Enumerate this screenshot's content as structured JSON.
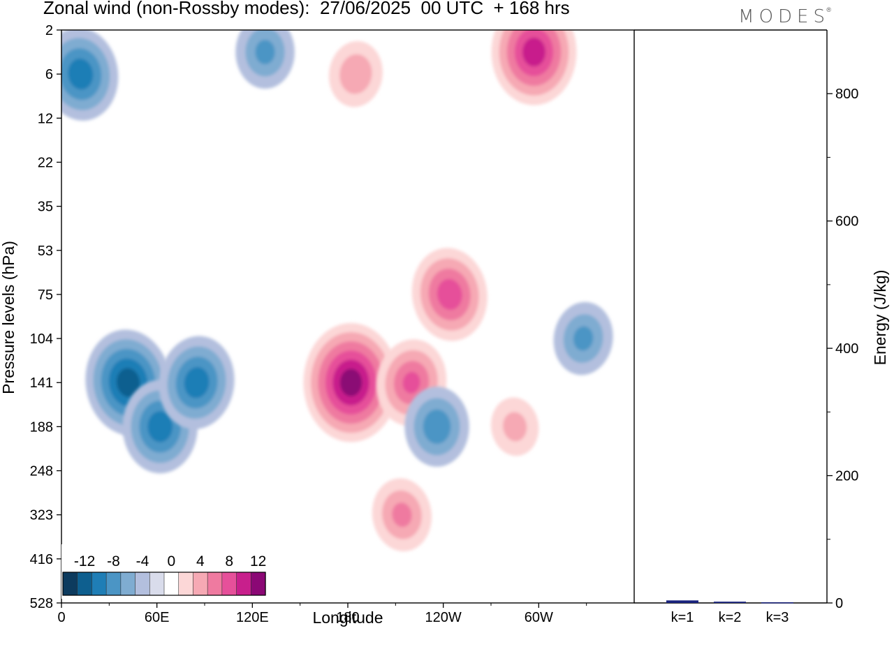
{
  "header": {
    "title": "Zonal wind (non-Rossby modes):  27/06/2025  00 UTC  + 168 hrs",
    "brand": "MODES",
    "brand_mark": "®"
  },
  "chart_data": [
    {
      "type": "heatmap",
      "variable": "Zonal wind",
      "xlabel": "Longitude",
      "ylabel": "Pressure levels (hPa)",
      "x_ticks": [
        "0",
        "60E",
        "120E",
        "180",
        "120W",
        "60W"
      ],
      "x_tick_degrees": [
        0,
        60,
        120,
        180,
        240,
        300
      ],
      "xlim": [
        0,
        360
      ],
      "y_ticks": [
        "2",
        "6",
        "12",
        "22",
        "35",
        "53",
        "75",
        "104",
        "141",
        "188",
        "248",
        "323",
        "416",
        "528"
      ],
      "y_scale": "model levels (irregular)",
      "colorbar": {
        "labels": [
          "-12",
          "-8",
          "-4",
          "0",
          "4",
          "8",
          "12"
        ],
        "levels": [
          -14,
          -12,
          -10,
          -8,
          -6,
          -4,
          -2,
          0,
          2,
          4,
          6,
          8,
          10,
          12,
          14
        ],
        "colors": [
          "#0d3b5e",
          "#0e5f8f",
          "#1f7eb6",
          "#4b95c5",
          "#7facd1",
          "#b3bfde",
          "#d9dceb",
          "#ffffff",
          "#fcd7d7",
          "#f6a9b4",
          "#ef7aa0",
          "#e6509a",
          "#c81f8c",
          "#8b0875"
        ],
        "placement": "bottom-left"
      },
      "features": [
        {
          "lon": 42,
          "level": "141",
          "value": -11
        },
        {
          "lon": 62,
          "level": "188",
          "value": -9
        },
        {
          "lon": 85,
          "level": "141",
          "value": -9
        },
        {
          "lon": 12,
          "level": "6",
          "value": -9
        },
        {
          "lon": 182,
          "level": "141",
          "value": 13
        },
        {
          "lon": 220,
          "level": "141",
          "value": 8
        },
        {
          "lon": 244,
          "level": "75",
          "value": 9
        },
        {
          "lon": 297,
          "level": "4",
          "value": 11
        },
        {
          "lon": 185,
          "level": "6",
          "value": 5
        },
        {
          "lon": 214,
          "level": "323",
          "value": 6
        },
        {
          "lon": 236,
          "level": "188",
          "value": -7
        },
        {
          "lon": 328,
          "level": "104",
          "value": -6
        },
        {
          "lon": 285,
          "level": "188",
          "value": 4
        },
        {
          "lon": 128,
          "level": "4",
          "value": -6
        }
      ]
    },
    {
      "type": "bar",
      "categories": [
        "k=1",
        "k=2",
        "k=3"
      ],
      "values": [
        4,
        2,
        1
      ],
      "ylabel": "Energy (J/kg)",
      "y_ticks": [
        "0",
        "200",
        "400",
        "600",
        "800"
      ],
      "ylim": [
        0,
        900
      ],
      "bar_color": "#1a237e"
    }
  ]
}
